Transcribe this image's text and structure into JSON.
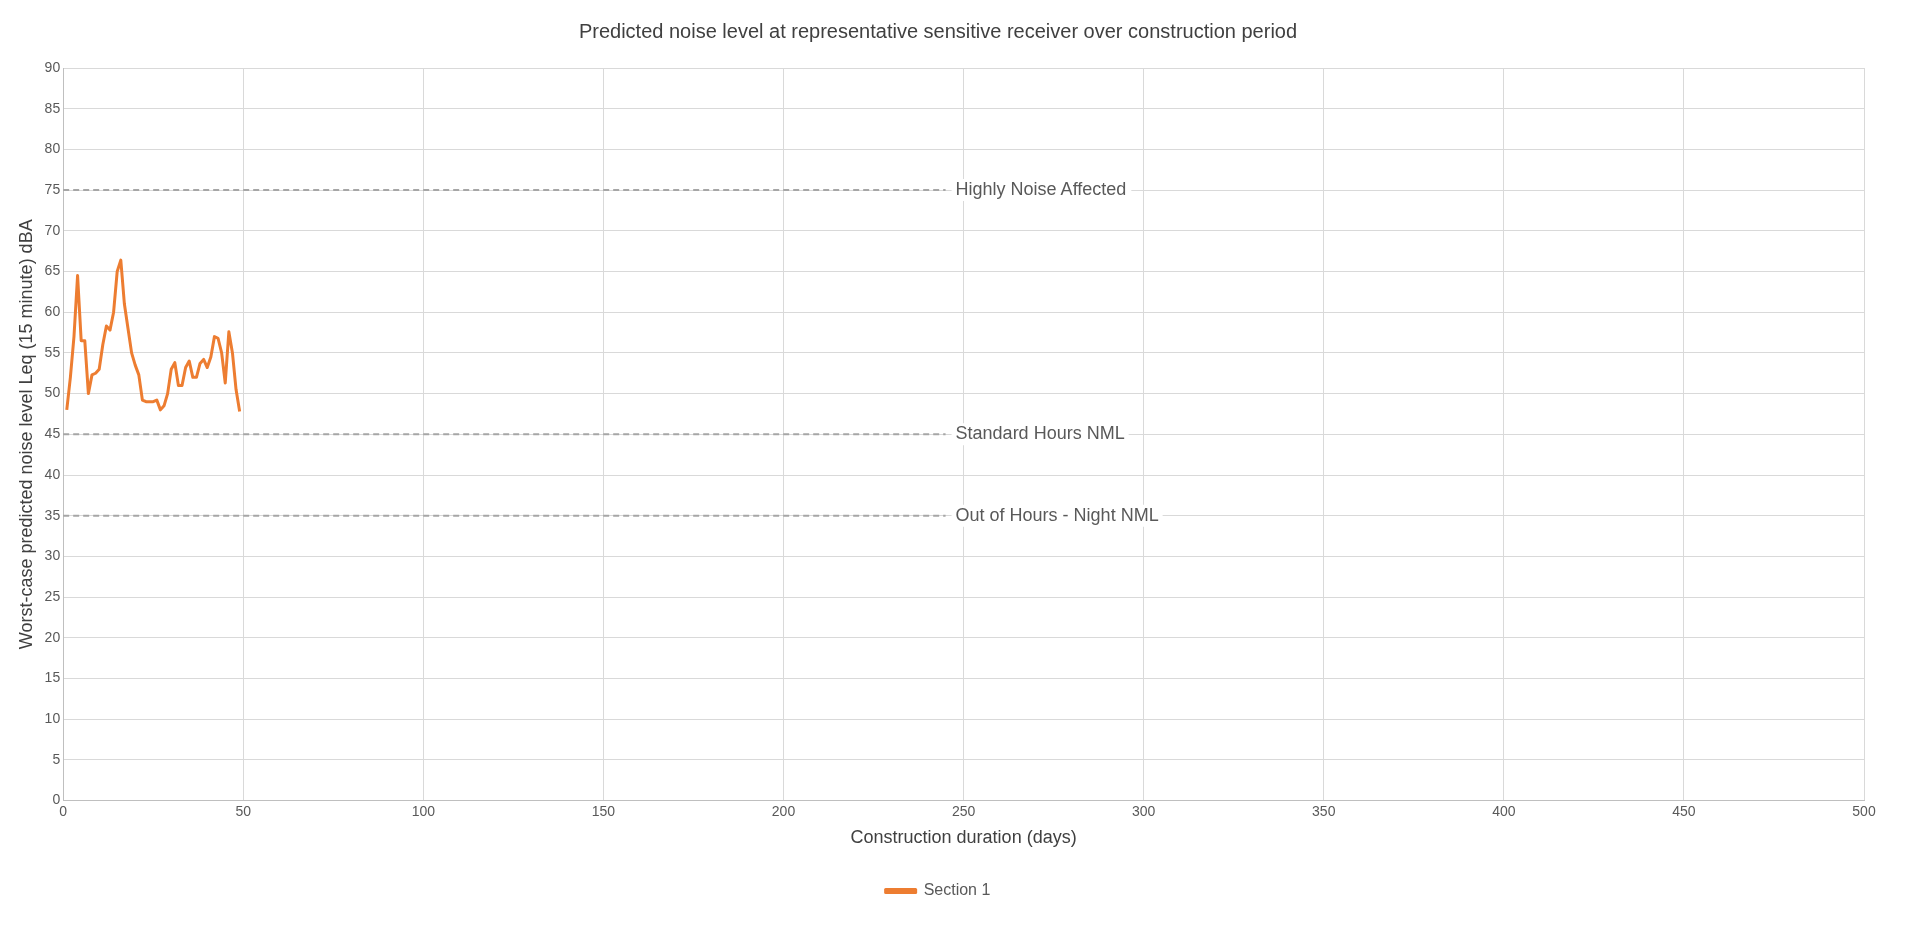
{
  "chart_data": {
    "type": "line",
    "title": "Predicted noise level at representative sensitive receiver over construction period",
    "xlabel": "Construction duration (days)",
    "ylabel": "Worst-case predicted noise level Leq (15 minute) dBA",
    "x": [
      1,
      2,
      3,
      4,
      5,
      6,
      7,
      8,
      9,
      10,
      11,
      12,
      13,
      14,
      15,
      16,
      17,
      18,
      19,
      20,
      21,
      22,
      23,
      24,
      25,
      26,
      27,
      28,
      29,
      30,
      31,
      32,
      33,
      34,
      35,
      36,
      37,
      38,
      39,
      40,
      41,
      42,
      43,
      44,
      45,
      46,
      47,
      48,
      49
    ],
    "series": [
      {
        "name": "Section 1",
        "color": "#ed7d31",
        "values": [
          48,
          52,
          57,
          64.5,
          56.5,
          56.5,
          50,
          52.3,
          52.5,
          53,
          56,
          58.3,
          57.8,
          60,
          65,
          66.4,
          61,
          58,
          55,
          53.5,
          52.3,
          49.2,
          49,
          49,
          49,
          49.2,
          48,
          48.5,
          50,
          53,
          53.8,
          51,
          51,
          53.2,
          54,
          52,
          52,
          53.7,
          54.2,
          53.2,
          54.5,
          57,
          56.8,
          55,
          51.3,
          57.6,
          55,
          50.5,
          47.8
        ]
      }
    ],
    "xlim": [
      0,
      500
    ],
    "xticks": [
      0,
      50,
      100,
      150,
      200,
      250,
      300,
      350,
      400,
      450,
      500
    ],
    "ylim": [
      0,
      90
    ],
    "yticks": [
      0,
      5,
      10,
      15,
      20,
      25,
      30,
      35,
      40,
      45,
      50,
      55,
      60,
      65,
      70,
      75,
      80,
      85,
      90
    ],
    "grid": true,
    "legend": "bottom",
    "marker": "none",
    "line_style": "solid",
    "ref_lines": [
      {
        "axis": "y",
        "value": 75,
        "label": "Highly Noise Affected",
        "color": "#a6a6a6",
        "line_style": "dashed"
      },
      {
        "axis": "y",
        "value": 45,
        "label": "Standard Hours NML",
        "color": "#a6a6a6",
        "line_style": "dashed"
      },
      {
        "axis": "y",
        "value": 35,
        "label": "Out of Hours - Night NML",
        "color": "#a6a6a6",
        "line_style": "dashed"
      }
    ]
  }
}
